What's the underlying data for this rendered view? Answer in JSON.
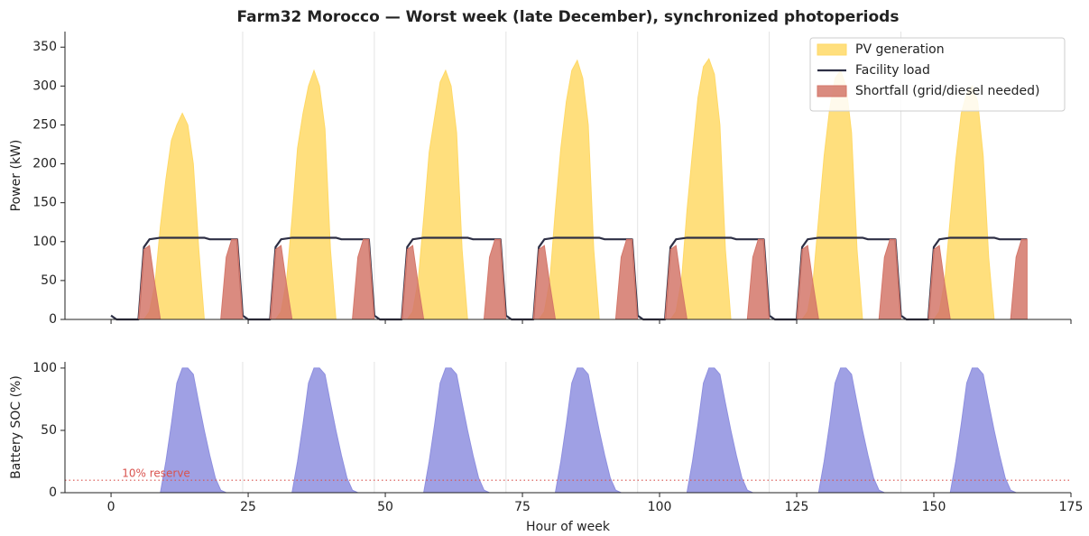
{
  "chart_data": [
    {
      "type": "line",
      "title": "Farm32 Morocco — Worst week (late December), synchronized photoperiods",
      "ylabel": "Power (kW)",
      "legend": "upper right",
      "xlim": [
        -8.4,
        175
      ],
      "xticks": [
        0,
        25,
        50,
        75,
        100,
        125,
        150,
        175
      ],
      "ylim": [
        0,
        370
      ],
      "yticks": [
        0,
        50,
        100,
        150,
        200,
        250,
        300,
        350
      ],
      "day_lines": [
        24,
        48,
        72,
        96,
        120,
        144
      ],
      "x": [
        0,
        1,
        2,
        3,
        4,
        5,
        6,
        7,
        8,
        9,
        10,
        11,
        12,
        13,
        14,
        15,
        16,
        17,
        18,
        19,
        20,
        21,
        22,
        23,
        24,
        25,
        26,
        27,
        28,
        29,
        30,
        31,
        32,
        33,
        34,
        35,
        36,
        37,
        38,
        39,
        40,
        41,
        42,
        43,
        44,
        45,
        46,
        47,
        48,
        49,
        50,
        51,
        52,
        53,
        54,
        55,
        56,
        57,
        58,
        59,
        60,
        61,
        62,
        63,
        64,
        65,
        66,
        67,
        68,
        69,
        70,
        71,
        72,
        73,
        74,
        75,
        76,
        77,
        78,
        79,
        80,
        81,
        82,
        83,
        84,
        85,
        86,
        87,
        88,
        89,
        90,
        91,
        92,
        93,
        94,
        95,
        96,
        97,
        98,
        99,
        100,
        101,
        102,
        103,
        104,
        105,
        106,
        107,
        108,
        109,
        110,
        111,
        112,
        113,
        114,
        115,
        116,
        117,
        118,
        119,
        120,
        121,
        122,
        123,
        124,
        125,
        126,
        127,
        128,
        129,
        130,
        131,
        132,
        133,
        134,
        135,
        136,
        137,
        138,
        139,
        140,
        141,
        142,
        143,
        144,
        145,
        146,
        147,
        148,
        149,
        150,
        151,
        152,
        153,
        154,
        155,
        156,
        157,
        158,
        159,
        160,
        161,
        162,
        163,
        164,
        165,
        166,
        167
      ],
      "series": [
        {
          "name": "PV generation",
          "kind": "area",
          "color": "#ffd966",
          "values": [
            0,
            0,
            0,
            0,
            0,
            0,
            0,
            10,
            45,
            120,
            180,
            230,
            250,
            265,
            250,
            200,
            90,
            0,
            0,
            0,
            0,
            0,
            0,
            0,
            0,
            0,
            0,
            0,
            0,
            0,
            0,
            10,
            50,
            130,
            220,
            265,
            300,
            320,
            300,
            245,
            90,
            0,
            0,
            0,
            0,
            0,
            0,
            0,
            0,
            0,
            0,
            0,
            0,
            0,
            0,
            10,
            50,
            130,
            215,
            260,
            305,
            320,
            300,
            240,
            90,
            0,
            0,
            0,
            0,
            0,
            0,
            0,
            0,
            0,
            0,
            0,
            0,
            0,
            0,
            10,
            50,
            140,
            220,
            280,
            320,
            333,
            310,
            250,
            90,
            0,
            0,
            0,
            0,
            0,
            0,
            0,
            0,
            0,
            0,
            0,
            0,
            0,
            0,
            10,
            50,
            140,
            215,
            285,
            325,
            335,
            315,
            250,
            90,
            0,
            0,
            0,
            0,
            0,
            0,
            0,
            0,
            0,
            0,
            0,
            0,
            0,
            0,
            10,
            50,
            130,
            210,
            270,
            310,
            320,
            300,
            240,
            90,
            0,
            0,
            0,
            0,
            0,
            0,
            0,
            0,
            0,
            0,
            0,
            0,
            0,
            0,
            10,
            50,
            130,
            205,
            265,
            290,
            300,
            280,
            210,
            80,
            0,
            0,
            0,
            0,
            0,
            0,
            0
          ]
        },
        {
          "name": "Facility load",
          "kind": "line",
          "color": "#2d2f45",
          "values": [
            5,
            0,
            0,
            0,
            0,
            0,
            93,
            103,
            104,
            105,
            105,
            105,
            105,
            105,
            105,
            105,
            105,
            105,
            103,
            103,
            103,
            103,
            103,
            103,
            5,
            0,
            0,
            0,
            0,
            0,
            93,
            103,
            104,
            105,
            105,
            105,
            105,
            105,
            105,
            105,
            105,
            105,
            103,
            103,
            103,
            103,
            103,
            103,
            5,
            0,
            0,
            0,
            0,
            0,
            93,
            103,
            104,
            105,
            105,
            105,
            105,
            105,
            105,
            105,
            105,
            105,
            103,
            103,
            103,
            103,
            103,
            103,
            5,
            0,
            0,
            0,
            0,
            0,
            93,
            103,
            104,
            105,
            105,
            105,
            105,
            105,
            105,
            105,
            105,
            105,
            103,
            103,
            103,
            103,
            103,
            103,
            5,
            0,
            0,
            0,
            0,
            0,
            93,
            103,
            104,
            105,
            105,
            105,
            105,
            105,
            105,
            105,
            105,
            105,
            103,
            103,
            103,
            103,
            103,
            103,
            5,
            0,
            0,
            0,
            0,
            0,
            93,
            103,
            104,
            105,
            105,
            105,
            105,
            105,
            105,
            105,
            105,
            105,
            103,
            103,
            103,
            103,
            103,
            103,
            5,
            0,
            0,
            0,
            0,
            0,
            93,
            103,
            104,
            105,
            105,
            105,
            105,
            105,
            105,
            105,
            105,
            105,
            103,
            103,
            103,
            103,
            103,
            103
          ]
        },
        {
          "name": "Shortfall (grid/diesel needed)",
          "kind": "area",
          "color": "#d4776a",
          "values": [
            0,
            0,
            0,
            0,
            0,
            0,
            90,
            95,
            45,
            0,
            0,
            0,
            0,
            0,
            0,
            0,
            0,
            0,
            0,
            0,
            0,
            80,
            103,
            103,
            0,
            0,
            0,
            0,
            0,
            0,
            90,
            95,
            45,
            0,
            0,
            0,
            0,
            0,
            0,
            0,
            0,
            0,
            0,
            0,
            0,
            80,
            103,
            103,
            0,
            0,
            0,
            0,
            0,
            0,
            90,
            95,
            45,
            0,
            0,
            0,
            0,
            0,
            0,
            0,
            0,
            0,
            0,
            0,
            0,
            80,
            103,
            103,
            0,
            0,
            0,
            0,
            0,
            0,
            90,
            95,
            45,
            0,
            0,
            0,
            0,
            0,
            0,
            0,
            0,
            0,
            0,
            0,
            0,
            80,
            103,
            103,
            0,
            0,
            0,
            0,
            0,
            0,
            90,
            95,
            45,
            0,
            0,
            0,
            0,
            0,
            0,
            0,
            0,
            0,
            0,
            0,
            0,
            80,
            103,
            103,
            0,
            0,
            0,
            0,
            0,
            0,
            90,
            95,
            45,
            0,
            0,
            0,
            0,
            0,
            0,
            0,
            0,
            0,
            0,
            0,
            0,
            80,
            103,
            103,
            0,
            0,
            0,
            0,
            0,
            0,
            90,
            95,
            45,
            0,
            0,
            0,
            0,
            0,
            0,
            0,
            0,
            0,
            0,
            0,
            0,
            80,
            103,
            103
          ]
        }
      ]
    },
    {
      "type": "area",
      "ylabel": "Battery SOC (%)",
      "xlabel": "Hour of week",
      "xlim": [
        -8.4,
        175
      ],
      "xticks": [
        0,
        25,
        50,
        75,
        100,
        125,
        150,
        175
      ],
      "ylim": [
        0,
        105
      ],
      "yticks": [
        0,
        50,
        100
      ],
      "day_lines": [
        24,
        48,
        72,
        96,
        120,
        144
      ],
      "reserve": {
        "value": 10,
        "label": "10% reserve",
        "color": "#d9534f"
      },
      "x": [
        0,
        1,
        2,
        3,
        4,
        5,
        6,
        7,
        8,
        9,
        10,
        11,
        12,
        13,
        14,
        15,
        16,
        17,
        18,
        19,
        20,
        21,
        22,
        23,
        24,
        25,
        26,
        27,
        28,
        29,
        30,
        31,
        32,
        33,
        34,
        35,
        36,
        37,
        38,
        39,
        40,
        41,
        42,
        43,
        44,
        45,
        46,
        47,
        48,
        49,
        50,
        51,
        52,
        53,
        54,
        55,
        56,
        57,
        58,
        59,
        60,
        61,
        62,
        63,
        64,
        65,
        66,
        67,
        68,
        69,
        70,
        71,
        72,
        73,
        74,
        75,
        76,
        77,
        78,
        79,
        80,
        81,
        82,
        83,
        84,
        85,
        86,
        87,
        88,
        89,
        90,
        91,
        92,
        93,
        94,
        95,
        96,
        97,
        98,
        99,
        100,
        101,
        102,
        103,
        104,
        105,
        106,
        107,
        108,
        109,
        110,
        111,
        112,
        113,
        114,
        115,
        116,
        117,
        118,
        119,
        120,
        121,
        122,
        123,
        124,
        125,
        126,
        127,
        128,
        129,
        130,
        131,
        132,
        133,
        134,
        135,
        136,
        137,
        138,
        139,
        140,
        141,
        142,
        143,
        144,
        145,
        146,
        147,
        148,
        149,
        150,
        151,
        152,
        153,
        154,
        155,
        156,
        157,
        158,
        159,
        160,
        161,
        162,
        163,
        164,
        165,
        166,
        167
      ],
      "series": [
        {
          "kind": "area",
          "color": "#8e8fdf",
          "values": [
            0,
            0,
            0,
            0,
            0,
            0,
            0,
            0,
            0,
            0,
            25,
            55,
            88,
            100,
            100,
            95,
            72,
            50,
            30,
            12,
            2,
            0,
            0,
            0,
            0,
            0,
            0,
            0,
            0,
            0,
            0,
            0,
            0,
            0,
            25,
            55,
            88,
            100,
            100,
            95,
            72,
            50,
            30,
            12,
            2,
            0,
            0,
            0,
            0,
            0,
            0,
            0,
            0,
            0,
            0,
            0,
            0,
            0,
            25,
            55,
            88,
            100,
            100,
            95,
            72,
            50,
            30,
            12,
            2,
            0,
            0,
            0,
            0,
            0,
            0,
            0,
            0,
            0,
            0,
            0,
            0,
            0,
            25,
            55,
            88,
            100,
            100,
            95,
            72,
            50,
            30,
            12,
            2,
            0,
            0,
            0,
            0,
            0,
            0,
            0,
            0,
            0,
            0,
            0,
            0,
            0,
            25,
            55,
            88,
            100,
            100,
            95,
            72,
            50,
            30,
            12,
            2,
            0,
            0,
            0,
            0,
            0,
            0,
            0,
            0,
            0,
            0,
            0,
            0,
            0,
            25,
            55,
            88,
            100,
            100,
            95,
            72,
            50,
            30,
            12,
            2,
            0,
            0,
            0,
            0,
            0,
            0,
            0,
            0,
            0,
            0,
            0,
            0,
            0,
            25,
            55,
            88,
            100,
            100,
            95,
            72,
            50,
            30,
            12,
            2,
            0,
            0,
            0
          ]
        }
      ]
    }
  ]
}
